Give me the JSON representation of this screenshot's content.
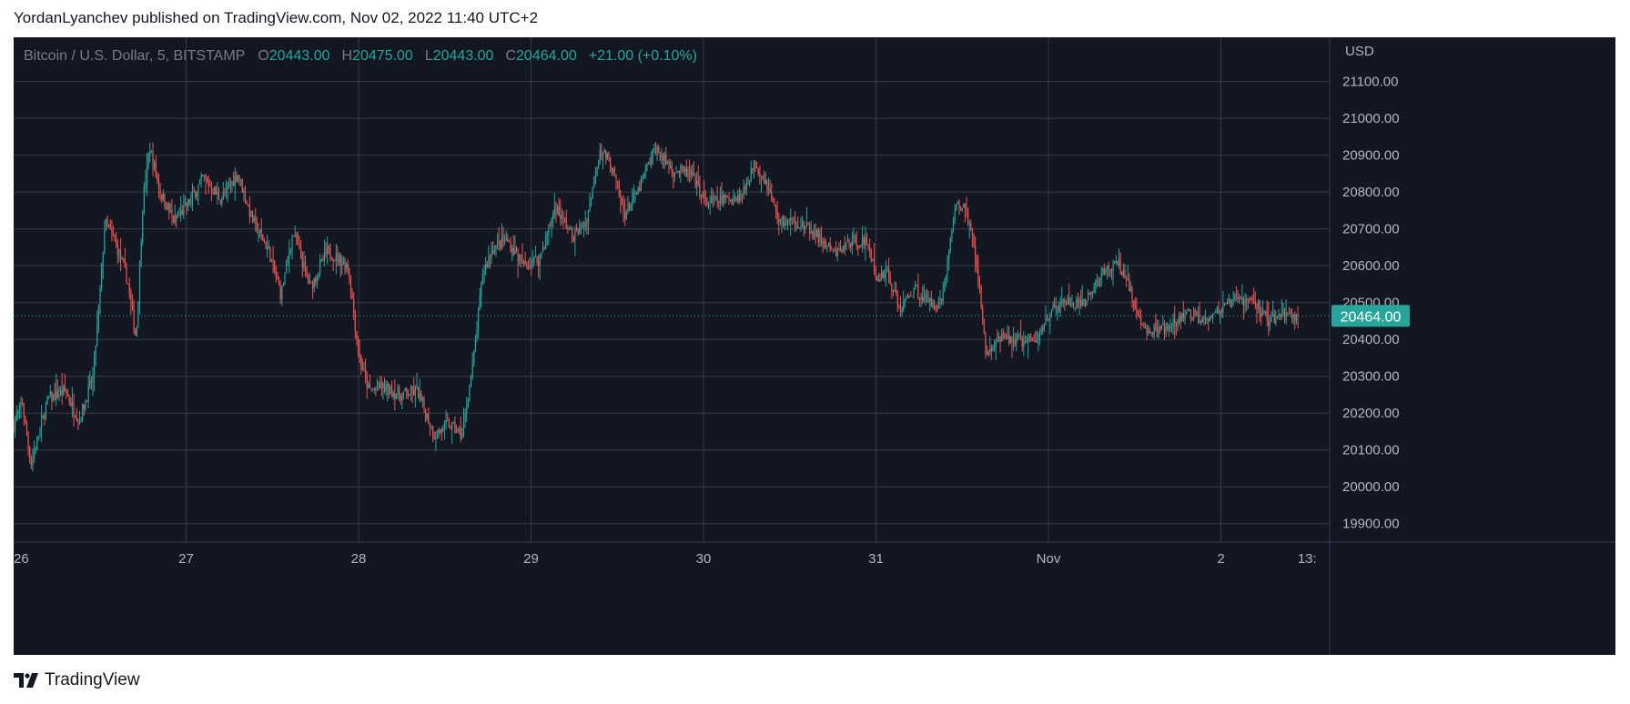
{
  "header": {
    "published_text": "YordanLyanchev published on TradingView.com, Nov 02, 2022 11:40 UTC+2"
  },
  "legend": {
    "symbol": "Bitcoin / U.S. Dollar, 5, BITSTAMP",
    "o_label": "O",
    "o_value": "20443.00",
    "h_label": "H",
    "h_value": "20475.00",
    "l_label": "L",
    "l_value": "20443.00",
    "c_label": "C",
    "c_value": "20464.00",
    "change": "+21.00 (+0.10%)"
  },
  "footer": {
    "brand": "TradingView"
  },
  "colors": {
    "background": "#131722",
    "grid": "#363a45",
    "text": "#b2b5be",
    "up": "#26a69a",
    "down": "#ef5350",
    "last_price_badge": "#26a69a"
  },
  "chart_data": {
    "type": "candlestick",
    "interval": "5",
    "exchange": "BITSTAMP",
    "currency_label": "USD",
    "ylim": [
      19850,
      21220
    ],
    "y_ticks": [
      {
        "value": 21100,
        "label": "21100.00"
      },
      {
        "value": 21000,
        "label": "21000.00"
      },
      {
        "value": 20900,
        "label": "20900.00"
      },
      {
        "value": 20800,
        "label": "20800.00"
      },
      {
        "value": 20700,
        "label": "20700.00"
      },
      {
        "value": 20600,
        "label": "20600.00"
      },
      {
        "value": 20500,
        "label": "20500.00"
      },
      {
        "value": 20400,
        "label": "20400.00"
      },
      {
        "value": 20300,
        "label": "20300.00"
      },
      {
        "value": 20200,
        "label": "20200.00"
      },
      {
        "value": 20100,
        "label": "20100.00"
      },
      {
        "value": 20000,
        "label": "20000.00"
      },
      {
        "value": 19900,
        "label": "19900.00"
      }
    ],
    "x_ticks": [
      {
        "label": "26",
        "day": 0
      },
      {
        "label": "27",
        "day": 1
      },
      {
        "label": "28",
        "day": 2
      },
      {
        "label": "29",
        "day": 3
      },
      {
        "label": "30",
        "day": 4
      },
      {
        "label": "31",
        "day": 5
      },
      {
        "label": "Nov",
        "day": 6
      },
      {
        "label": "2",
        "day": 7
      },
      {
        "label": "13:",
        "day": 7.5
      }
    ],
    "x_range_days": [
      0,
      7.55
    ],
    "last_price": 20464.0,
    "last_price_label": "20464.00",
    "price_path": [
      [
        0.0,
        20170
      ],
      [
        0.05,
        20230
      ],
      [
        0.1,
        20060
      ],
      [
        0.2,
        20240
      ],
      [
        0.3,
        20260
      ],
      [
        0.38,
        20180
      ],
      [
        0.46,
        20300
      ],
      [
        0.5,
        20520
      ],
      [
        0.53,
        20720
      ],
      [
        0.6,
        20650
      ],
      [
        0.66,
        20560
      ],
      [
        0.71,
        20400
      ],
      [
        0.75,
        20780
      ],
      [
        0.79,
        20920
      ],
      [
        0.85,
        20800
      ],
      [
        0.93,
        20720
      ],
      [
        1.0,
        20760
      ],
      [
        1.1,
        20840
      ],
      [
        1.2,
        20780
      ],
      [
        1.3,
        20850
      ],
      [
        1.38,
        20730
      ],
      [
        1.48,
        20640
      ],
      [
        1.55,
        20520
      ],
      [
        1.62,
        20690
      ],
      [
        1.72,
        20540
      ],
      [
        1.82,
        20640
      ],
      [
        1.94,
        20600
      ],
      [
        2.0,
        20360
      ],
      [
        2.06,
        20260
      ],
      [
        2.14,
        20270
      ],
      [
        2.24,
        20250
      ],
      [
        2.34,
        20260
      ],
      [
        2.44,
        20140
      ],
      [
        2.52,
        20170
      ],
      [
        2.6,
        20140
      ],
      [
        2.66,
        20320
      ],
      [
        2.72,
        20580
      ],
      [
        2.78,
        20650
      ],
      [
        2.86,
        20670
      ],
      [
        2.96,
        20600
      ],
      [
        3.05,
        20620
      ],
      [
        3.14,
        20760
      ],
      [
        3.24,
        20680
      ],
      [
        3.32,
        20720
      ],
      [
        3.4,
        20920
      ],
      [
        3.46,
        20880
      ],
      [
        3.54,
        20740
      ],
      [
        3.62,
        20800
      ],
      [
        3.72,
        20920
      ],
      [
        3.82,
        20860
      ],
      [
        3.92,
        20850
      ],
      [
        4.02,
        20770
      ],
      [
        4.12,
        20780
      ],
      [
        4.22,
        20790
      ],
      [
        4.3,
        20880
      ],
      [
        4.36,
        20830
      ],
      [
        4.44,
        20720
      ],
      [
        4.54,
        20720
      ],
      [
        4.66,
        20680
      ],
      [
        4.76,
        20630
      ],
      [
        4.86,
        20670
      ],
      [
        4.96,
        20660
      ],
      [
        5.0,
        20560
      ],
      [
        5.06,
        20590
      ],
      [
        5.14,
        20480
      ],
      [
        5.22,
        20540
      ],
      [
        5.3,
        20500
      ],
      [
        5.38,
        20500
      ],
      [
        5.46,
        20760
      ],
      [
        5.52,
        20760
      ],
      [
        5.58,
        20620
      ],
      [
        5.64,
        20360
      ],
      [
        5.72,
        20400
      ],
      [
        5.82,
        20400
      ],
      [
        5.92,
        20390
      ],
      [
        6.0,
        20470
      ],
      [
        6.1,
        20500
      ],
      [
        6.2,
        20490
      ],
      [
        6.3,
        20570
      ],
      [
        6.4,
        20610
      ],
      [
        6.46,
        20560
      ],
      [
        6.52,
        20450
      ],
      [
        6.6,
        20420
      ],
      [
        6.7,
        20430
      ],
      [
        6.8,
        20470
      ],
      [
        6.9,
        20460
      ],
      [
        7.0,
        20480
      ],
      [
        7.1,
        20510
      ],
      [
        7.2,
        20500
      ],
      [
        7.28,
        20450
      ],
      [
        7.36,
        20470
      ],
      [
        7.45,
        20464
      ]
    ]
  }
}
